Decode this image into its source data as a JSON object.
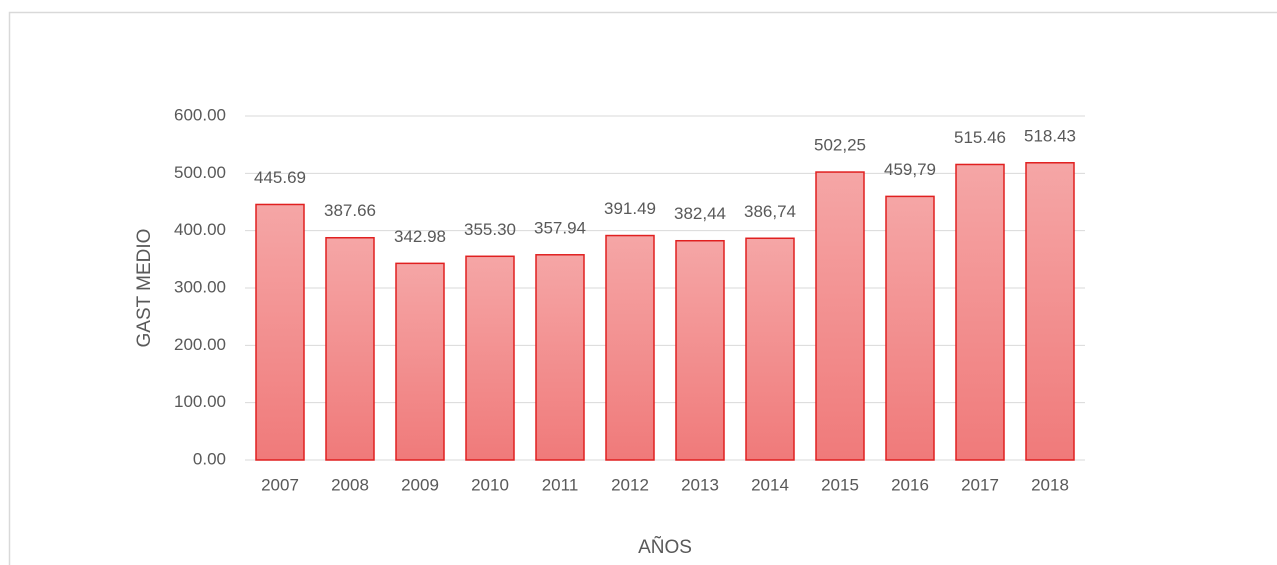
{
  "chart_data": {
    "type": "bar",
    "x_label": "AÑOS",
    "y_label": "GAST MEDIO",
    "categories": [
      "2007",
      "2008",
      "2009",
      "2010",
      "2011",
      "2012",
      "2013",
      "2014",
      "2015",
      "2016",
      "2017",
      "2018"
    ],
    "values": [
      445.69,
      387.66,
      342.98,
      355.3,
      357.94,
      391.49,
      382.44,
      386.74,
      502.25,
      459.79,
      515.46,
      518.43
    ],
    "value_labels": [
      "445.69",
      "387.66",
      "342.98",
      "355.30",
      "357.94",
      "391.49",
      "382,44",
      "386,74",
      "502,25",
      "459,79",
      "515.46",
      "518.43"
    ],
    "color": "#f08a8a",
    "edge_color": "#e02020",
    "ylim": [
      0,
      600
    ],
    "yticks": [
      {
        "value": 0,
        "label": "0.00"
      },
      {
        "value": 100,
        "label": "100.00"
      },
      {
        "value": 200,
        "label": "200.00"
      },
      {
        "value": 300,
        "label": "300.00"
      },
      {
        "value": 400,
        "label": "400.00"
      },
      {
        "value": 500,
        "label": "500.00"
      },
      {
        "value": 600,
        "label": "600.00"
      }
    ],
    "grid": true
  }
}
